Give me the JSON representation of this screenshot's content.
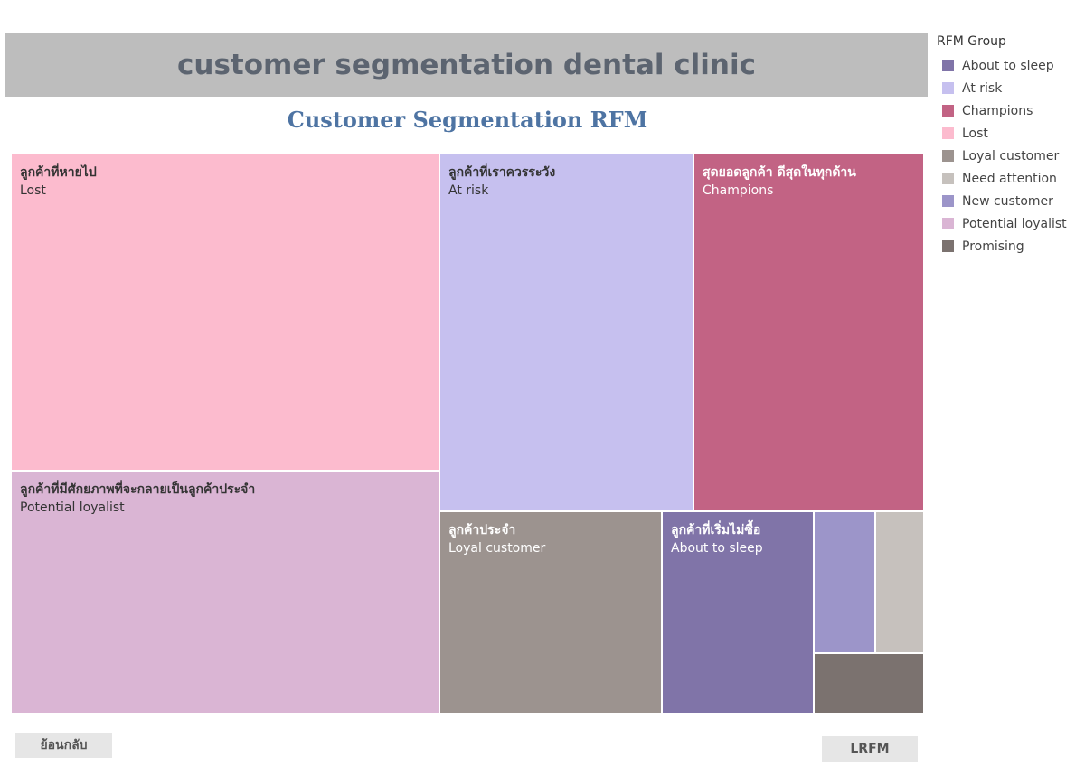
{
  "header": {
    "title": "customer segmentation dental clinic"
  },
  "chart_data": {
    "type": "treemap",
    "title": "Customer Segmentation RFM",
    "legend": {
      "title": "RFM Group",
      "position": "right",
      "items": [
        {
          "name": "About to sleep",
          "color": "#8074a8"
        },
        {
          "name": "At risk",
          "color": "#c6c0ef"
        },
        {
          "name": "Champions",
          "color": "#c26384"
        },
        {
          "name": "Lost",
          "color": "#fcbbce"
        },
        {
          "name": "Loyal customer",
          "color": "#9c938f"
        },
        {
          "name": "Need attention",
          "color": "#c6c1bd"
        },
        {
          "name": "New customer",
          "color": "#9c95c9"
        },
        {
          "name": "Potential loyalist",
          "color": "#dab5d4"
        },
        {
          "name": "Promising",
          "color": "#7b726f"
        }
      ]
    },
    "tiles": [
      {
        "group": "Lost",
        "thai": "ลูกค้าที่หายไป",
        "label": "Lost",
        "color": "#fcbbce",
        "text_color": "#333333"
      },
      {
        "group": "Potential loyalist",
        "thai": "ลูกค้าที่มีศักยภาพที่จะกลายเป็นลูกค้าประจำ",
        "label": "Potential loyalist",
        "color": "#dab5d4",
        "text_color": "#333333"
      },
      {
        "group": "At risk",
        "thai": "ลูกค้าที่เราควรระวัง",
        "label": "At risk",
        "color": "#c6c0ef",
        "text_color": "#333333"
      },
      {
        "group": "Champions",
        "thai": "สุดยอดลูกค้า ดีสุดในทุกด้าน",
        "label": "Champions",
        "color": "#c26384",
        "text_color": "#ffffff"
      },
      {
        "group": "Loyal customer",
        "thai": "ลูกค้าประจำ",
        "label": "Loyal customer",
        "color": "#9c938f",
        "text_color": "#ffffff"
      },
      {
        "group": "About to sleep",
        "thai": "ลูกค้าที่เริ่มไม่ซื้อ",
        "label": "About to sleep",
        "color": "#8074a8",
        "text_color": "#ffffff"
      },
      {
        "group": "New customer",
        "thai": "",
        "label": "",
        "color": "#9c95c9",
        "text_color": "#ffffff"
      },
      {
        "group": "Need attention",
        "thai": "",
        "label": "",
        "color": "#c6c1bd",
        "text_color": "#ffffff"
      },
      {
        "group": "Promising",
        "thai": "",
        "label": "",
        "color": "#7b726f",
        "text_color": "#ffffff"
      }
    ]
  },
  "buttons": {
    "back_label": "ย้อนกลับ",
    "lrfm_label": "LRFM"
  }
}
